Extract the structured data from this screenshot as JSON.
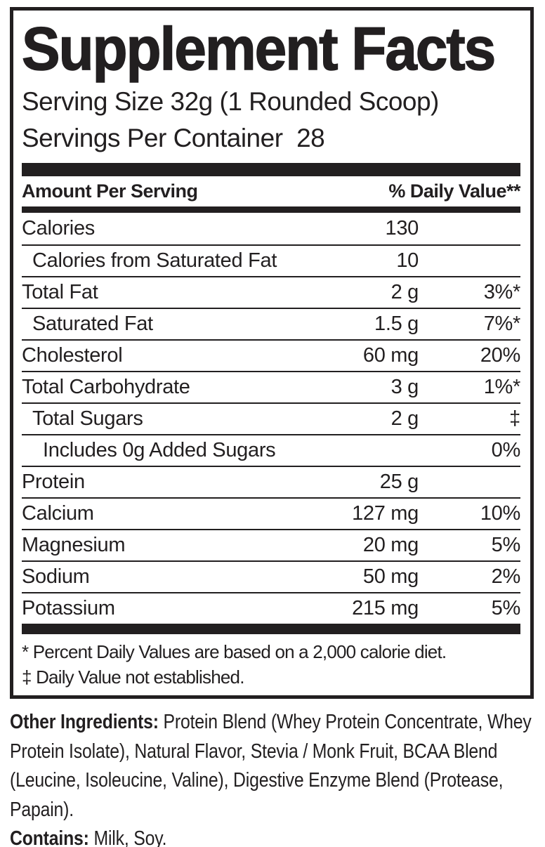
{
  "panel": {
    "title": "Supplement Facts",
    "serving_size": "Serving Size 32g (1 Rounded Scoop)",
    "servings_per_container": "Servings Per Container  28",
    "columns": {
      "amount_per_serving": "Amount Per Serving",
      "daily_value": "% Daily Value**"
    },
    "rows": [
      {
        "label": "Calories",
        "amount": "130",
        "dv": "",
        "indent": 0
      },
      {
        "label": "Calories from Saturated Fat",
        "amount": "10",
        "dv": "",
        "indent": 1
      },
      {
        "label": "Total Fat",
        "amount": "2 g",
        "dv": "3%*",
        "indent": 0
      },
      {
        "label": "Saturated Fat",
        "amount": "1.5 g",
        "dv": "7%*",
        "indent": 1
      },
      {
        "label": "Cholesterol",
        "amount": "60 mg",
        "dv": "20%",
        "indent": 0
      },
      {
        "label": "Total Carbohydrate",
        "amount": "3 g",
        "dv": "1%*",
        "indent": 0
      },
      {
        "label": "Total Sugars",
        "amount": "2 g",
        "dv": "‡",
        "indent": 1
      },
      {
        "label": "Includes 0g Added Sugars",
        "amount": "",
        "dv": "0%",
        "indent": 2
      },
      {
        "label": "Protein",
        "amount": "25 g",
        "dv": "",
        "indent": 0
      },
      {
        "label": "Calcium",
        "amount": "127 mg",
        "dv": "10%",
        "indent": 0
      },
      {
        "label": "Magnesium",
        "amount": "20 mg",
        "dv": "5%",
        "indent": 0
      },
      {
        "label": "Sodium",
        "amount": "50 mg",
        "dv": "2%",
        "indent": 0
      },
      {
        "label": "Potassium",
        "amount": "215 mg",
        "dv": "5%",
        "indent": 0
      }
    ],
    "footnotes": [
      "* Percent Daily Values are based on a 2,000 calorie diet.",
      "‡ Daily Value not established."
    ]
  },
  "footer": {
    "other_ingredients_label": "Other Ingredients:",
    "other_ingredients_text": " Protein Blend (Whey Protein Concentrate, Whey Protein Isolate), Natural Flavor, Stevia / Monk Fruit, BCAA Blend (Leucine, Isoleucine, Valine), Digestive Enzyme Blend (Protease, Papain).",
    "contains_label": "Contains:",
    "contains_text": " Milk, Soy."
  },
  "colors": {
    "ink": "#221f20",
    "background": "#ffffff"
  }
}
